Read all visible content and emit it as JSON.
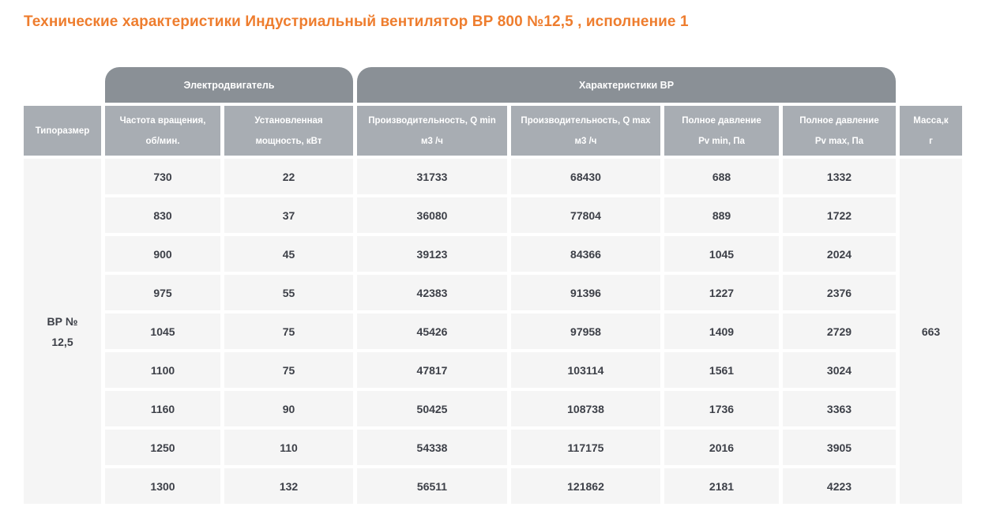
{
  "title": "Технические характеристики Индустриальный вентилятор ВР 800 №12,5 , исполнение 1",
  "colors": {
    "accent_orange": "#ee7d2e",
    "group_header_bg": "#8a9096",
    "column_header_bg": "#a8adb3",
    "cell_bg": "#f5f5f5",
    "cell_text": "#3d4048"
  },
  "table": {
    "group_headers": {
      "motor": "Электродвигатель",
      "vr": "Характеристики ВР"
    },
    "column_headers": {
      "typesize": "Типоразмер",
      "rpm": "Частота вращения,\nоб/мин.",
      "power": "Установленная\nмощность, кВт",
      "qmin": "Производительность, Q min\nм3 /ч",
      "qmax": "Производительность, Q max\nм3 /ч",
      "pvmin": "Полное давление\nPv min, Па",
      "pvmax": "Полное давление\nPv max, Па",
      "mass": "Масса,к\nг"
    },
    "typesize_value": "ВР №\n12,5",
    "mass_value": "663",
    "rows": [
      [
        "730",
        "22",
        "31733",
        "68430",
        "688",
        "1332"
      ],
      [
        "830",
        "37",
        "36080",
        "77804",
        "889",
        "1722"
      ],
      [
        "900",
        "45",
        "39123",
        "84366",
        "1045",
        "2024"
      ],
      [
        "975",
        "55",
        "42383",
        "91396",
        "1227",
        "2376"
      ],
      [
        "1045",
        "75",
        "45426",
        "97958",
        "1409",
        "2729"
      ],
      [
        "1100",
        "75",
        "47817",
        "103114",
        "1561",
        "3024"
      ],
      [
        "1160",
        "90",
        "50425",
        "108738",
        "1736",
        "3363"
      ],
      [
        "1250",
        "110",
        "54338",
        "117175",
        "2016",
        "3905"
      ],
      [
        "1300",
        "132",
        "56511",
        "121862",
        "2181",
        "4223"
      ]
    ]
  }
}
